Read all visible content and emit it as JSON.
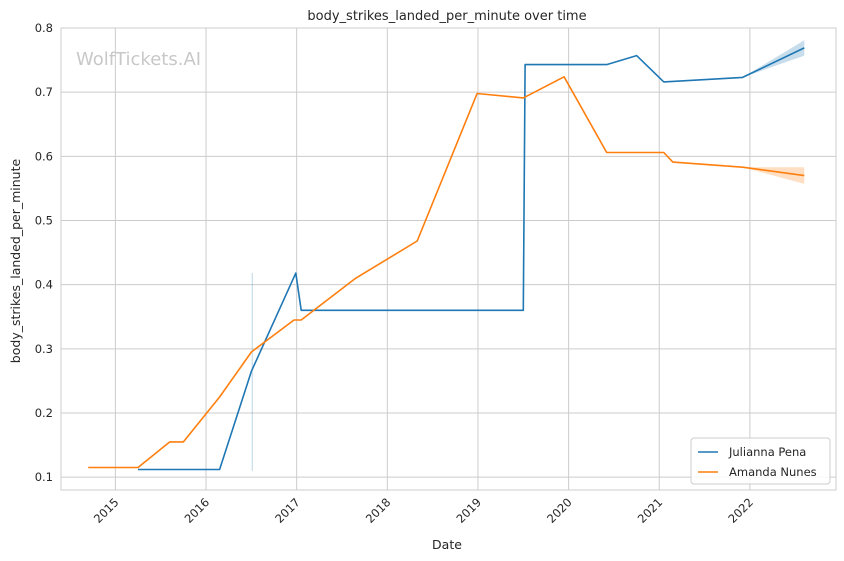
{
  "chart_data": {
    "type": "line",
    "title": "body_strikes_landed_per_minute over time",
    "xlabel": "Date",
    "ylabel": "body_strikes_landed_per_minute",
    "watermark": "WolfTickets.AI",
    "xlim": [
      2014.4,
      2022.95
    ],
    "ylim": [
      0.08,
      0.8
    ],
    "xticks": [
      {
        "value": 2015,
        "label": "2015"
      },
      {
        "value": 2016,
        "label": "2016"
      },
      {
        "value": 2017,
        "label": "2017"
      },
      {
        "value": 2018,
        "label": "2018"
      },
      {
        "value": 2019,
        "label": "2019"
      },
      {
        "value": 2020,
        "label": "2020"
      },
      {
        "value": 2021,
        "label": "2021"
      },
      {
        "value": 2022,
        "label": "2022"
      }
    ],
    "yticks": [
      {
        "value": 0.1,
        "label": "0.1"
      },
      {
        "value": 0.2,
        "label": "0.2"
      },
      {
        "value": 0.3,
        "label": "0.3"
      },
      {
        "value": 0.4,
        "label": "0.4"
      },
      {
        "value": 0.5,
        "label": "0.5"
      },
      {
        "value": 0.6,
        "label": "0.6"
      },
      {
        "value": 0.7,
        "label": "0.7"
      },
      {
        "value": 0.8,
        "label": "0.8"
      }
    ],
    "grid": true,
    "legend_position": "bottom-right",
    "series": [
      {
        "name": "Julianna Pena",
        "color": "#1f77b4",
        "points": [
          [
            2015.25,
            0.112
          ],
          [
            2016.15,
            0.112
          ],
          [
            2016.5,
            0.265
          ],
          [
            2016.99,
            0.418
          ],
          [
            2017.05,
            0.36
          ],
          [
            2019.5,
            0.36
          ],
          [
            2019.52,
            0.743
          ],
          [
            2020.42,
            0.743
          ],
          [
            2020.75,
            0.757
          ],
          [
            2021.05,
            0.716
          ],
          [
            2021.92,
            0.723
          ],
          [
            2022.6,
            0.769
          ]
        ],
        "bands": [
          {
            "x": [
              2016.51,
              2016.51
            ],
            "y": [
              0.11,
              0.418
            ],
            "kind": "vline"
          },
          {
            "x": [
              2021.92,
              2022.6
            ],
            "ylow": [
              0.723,
              0.769
            ],
            "yhigh": [
              0.723,
              0.769
            ],
            "spread": [
              0.0,
              0.012
            ]
          }
        ]
      },
      {
        "name": "Amanda Nunes",
        "color": "#ff7f0e",
        "points": [
          [
            2014.7,
            0.115
          ],
          [
            2015.25,
            0.115
          ],
          [
            2015.6,
            0.155
          ],
          [
            2015.75,
            0.155
          ],
          [
            2016.15,
            0.225
          ],
          [
            2016.5,
            0.295
          ],
          [
            2016.97,
            0.345
          ],
          [
            2017.05,
            0.345
          ],
          [
            2017.65,
            0.41
          ],
          [
            2018.33,
            0.468
          ],
          [
            2018.99,
            0.698
          ],
          [
            2019.5,
            0.691
          ],
          [
            2019.95,
            0.724
          ],
          [
            2020.42,
            0.606
          ],
          [
            2021.05,
            0.606
          ],
          [
            2021.15,
            0.591
          ],
          [
            2021.92,
            0.583
          ],
          [
            2022.6,
            0.57
          ]
        ],
        "bands": [
          {
            "x": [
              2021.92,
              2022.6
            ],
            "spread": [
              0.0,
              0.013
            ]
          }
        ]
      }
    ]
  }
}
